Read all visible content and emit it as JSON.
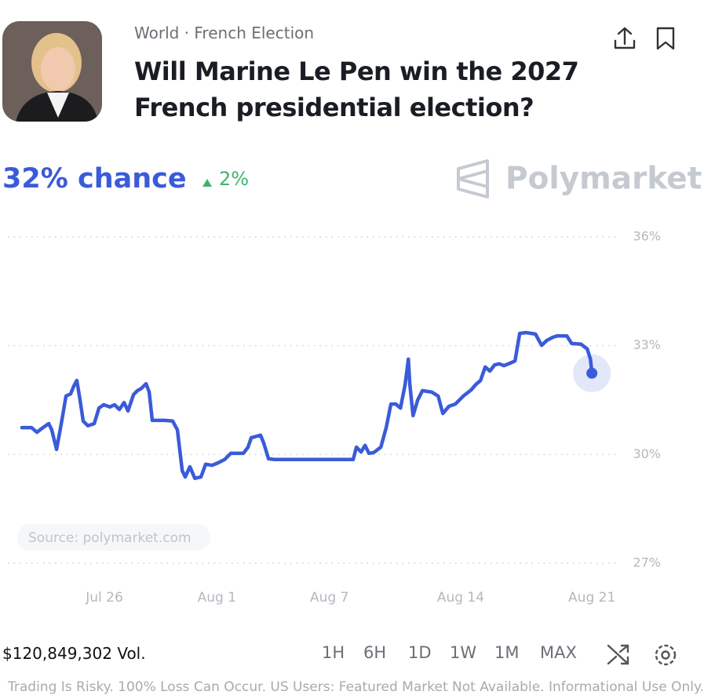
{
  "header": {
    "category": "World · French Election",
    "title": "Will Marine Le Pen win the 2027 French presidential election?"
  },
  "chance": "32% chance",
  "change": "2%",
  "brand": "Polymarket",
  "chart_data": {
    "type": "line",
    "color": "#3a5bd9",
    "x": [
      -4.4,
      -3.89,
      -3.6,
      -3.27,
      -2.97,
      -2.81,
      -2.55,
      -2.3,
      -2.05,
      -1.8,
      -1.63,
      -1.47,
      -1.3,
      -1.13,
      -0.88,
      -0.54,
      -0.29,
      -0.04,
      0.29,
      0.54,
      0.8,
      1.05,
      1.26,
      1.55,
      1.76,
      1.97,
      2.22,
      2.39,
      2.55,
      3.22,
      3.64,
      3.89,
      4.15,
      4.31,
      4.56,
      4.82,
      5.15,
      5.4,
      5.74,
      6.07,
      6.41,
      6.74,
      7.41,
      7.66,
      7.83,
      8.33,
      8.5,
      8.75,
      9.09,
      13.27,
      13.44,
      13.69,
      13.9,
      14.11,
      14.36,
      14.74,
      15.03,
      15.28,
      15.54,
      15.79,
      16.04,
      16.21,
      16.29,
      16.46,
      16.71,
      16.96,
      17.46,
      17.8,
      18.05,
      18.38,
      18.72,
      19.14,
      19.56,
      19.81,
      20.06,
      20.31,
      20.56,
      20.81,
      21.06,
      21.31,
      21.65,
      21.9,
      22.15,
      22.49,
      22.99,
      23.32,
      23.58,
      23.91,
      24.16,
      24.66,
      24.92,
      25.42,
      25.75,
      25.92,
      26.0
    ],
    "values": [
      30.74,
      30.74,
      30.61,
      30.74,
      30.85,
      30.68,
      30.14,
      30.85,
      31.61,
      31.67,
      31.89,
      32.04,
      31.5,
      30.92,
      30.79,
      30.85,
      31.28,
      31.37,
      31.31,
      31.37,
      31.24,
      31.43,
      31.2,
      31.65,
      31.76,
      31.82,
      31.95,
      31.72,
      30.94,
      30.94,
      30.92,
      30.68,
      29.55,
      29.38,
      29.66,
      29.34,
      29.38,
      29.73,
      29.7,
      29.77,
      29.86,
      30.03,
      30.03,
      30.2,
      30.46,
      30.53,
      30.31,
      29.88,
      29.86,
      29.86,
      30.2,
      30.07,
      30.25,
      30.03,
      30.05,
      30.2,
      30.74,
      31.39,
      31.39,
      31.28,
      31.93,
      32.63,
      31.93,
      31.07,
      31.5,
      31.76,
      31.72,
      31.61,
      31.13,
      31.33,
      31.39,
      31.61,
      31.78,
      31.93,
      32.04,
      32.41,
      32.3,
      32.47,
      32.5,
      32.45,
      32.52,
      32.58,
      33.34,
      33.36,
      33.32,
      33.01,
      33.14,
      33.23,
      33.27,
      33.27,
      33.06,
      33.04,
      32.91,
      32.63,
      32.24
    ],
    "xlim": [
      -5.15,
      27.5
    ],
    "xticks": [
      {
        "value": 0,
        "label": "Jul 26"
      },
      {
        "value": 6,
        "label": "Aug 1"
      },
      {
        "value": 12,
        "label": "Aug 7"
      },
      {
        "value": 19,
        "label": "Aug 14"
      },
      {
        "value": 26,
        "label": "Aug 21"
      }
    ],
    "ylim": [
      27,
      36
    ],
    "yticks": [
      {
        "value": 36,
        "label": "36%"
      },
      {
        "value": 33,
        "label": "33%"
      },
      {
        "value": 30,
        "label": "30%"
      },
      {
        "value": 27,
        "label": "27%"
      }
    ],
    "grid": true
  },
  "source": "Source: polymarket.com",
  "volume": "$120,849,302 Vol.",
  "ranges": [
    "1H",
    "6H",
    "1D",
    "1W",
    "1M",
    "MAX"
  ],
  "disclaimer": "Trading Is Risky. 100% Loss Can Occur. US Users: Featured Market Not Available. Informational Use Only."
}
